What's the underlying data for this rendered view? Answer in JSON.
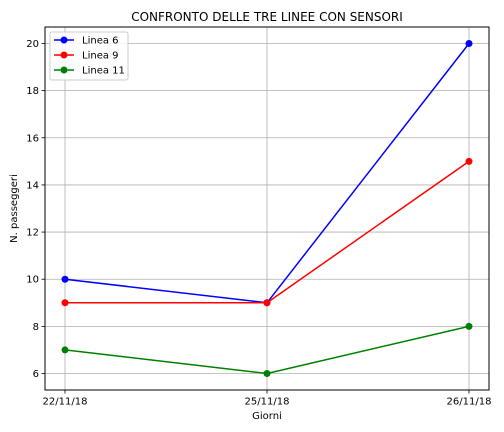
{
  "chart_data": {
    "type": "line",
    "title": "CONFRONTO DELLE TRE LINEE CON SENSORI",
    "xlabel": "Giorni",
    "ylabel": "N. passeggeri",
    "categories": [
      "22/11/18",
      "25/11/18",
      "26/11/18"
    ],
    "yticks": [
      6,
      8,
      10,
      12,
      14,
      16,
      18,
      20
    ],
    "ylim": [
      5.3,
      20.7
    ],
    "grid": true,
    "legend_position": "top-left",
    "series": [
      {
        "name": "Linea 6",
        "color": "#0000ff",
        "values": [
          10,
          9,
          20
        ]
      },
      {
        "name": "Linea 9",
        "color": "#ff0000",
        "values": [
          9,
          9,
          15
        ]
      },
      {
        "name": "Linea 11",
        "color": "#008000",
        "values": [
          7,
          6,
          8
        ]
      }
    ]
  }
}
